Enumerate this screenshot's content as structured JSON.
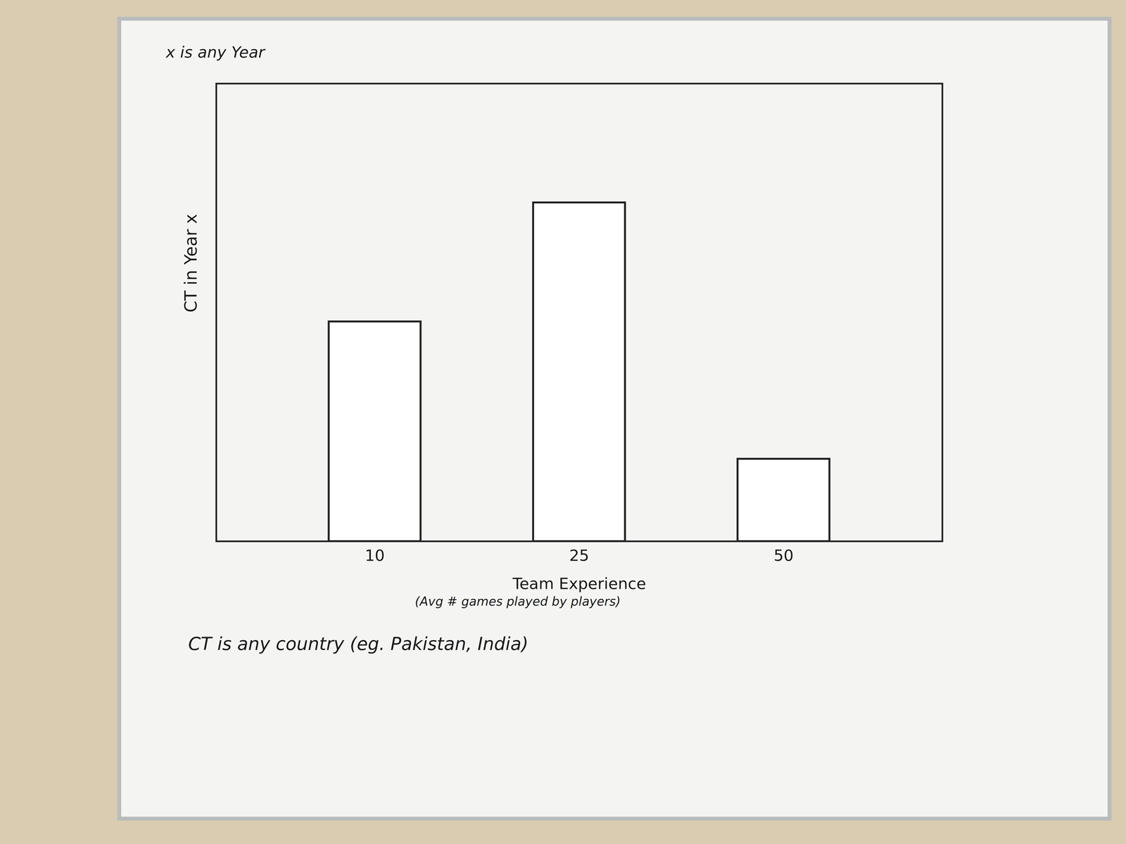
{
  "chart_data": {
    "type": "bar",
    "x_label": "Team Experience",
    "y_label": "CT in Year x",
    "annotations": [
      "(Avg # games played by players)",
      "x is any Year",
      "CT is any country (eg. Pakistan, India)"
    ],
    "categories": [
      "10",
      "25",
      "50"
    ],
    "values": [
      48,
      74,
      18
    ],
    "color": "#222222",
    "ylim": [
      0,
      100
    ],
    "grid": false,
    "tick_labels": "x"
  }
}
